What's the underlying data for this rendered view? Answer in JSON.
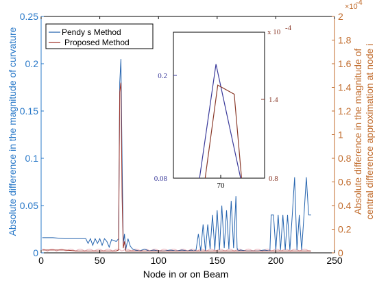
{
  "chart_data": {
    "type": "line",
    "title": "",
    "xlabel": "Node in or on Beam",
    "ylabel_left": "Absolute difference in the magnitude of curvature",
    "ylabel_right": [
      "Absolute difference in the magnitude of",
      "central difference approximation at node i"
    ],
    "xlim": [
      0,
      250
    ],
    "ylim_left": [
      0,
      0.25
    ],
    "ylim_right": [
      0,
      2
    ],
    "right_multiplier": "×10",
    "right_exponent": "-4",
    "x_ticks": [
      "0",
      "50",
      "100",
      "150",
      "200",
      "250"
    ],
    "y_ticks_left": [
      "0",
      "0.05",
      "0.1",
      "0.15",
      "0.2",
      "0.25"
    ],
    "y_ticks_right": [
      "0",
      "0.2",
      "0.4",
      "0.6",
      "0.8",
      "1",
      "1.2",
      "1.4",
      "1.6",
      "1.8",
      "2"
    ],
    "legend_position": "top-left",
    "colors": {
      "blue": "#2463ae",
      "red": "#a0342a",
      "left_axis": "#2878c8",
      "right_axis": "#c06a2a",
      "inset_left": "#3a3a9a",
      "inset_right": "#8a3a2a",
      "noise": "#e7a8b2"
    },
    "series": [
      {
        "name": "Pendy s Method",
        "axis": "left",
        "color": "#2463ae",
        "x": [
          1,
          10,
          20,
          30,
          38,
          40,
          42,
          44,
          46,
          48,
          50,
          52,
          54,
          56,
          58,
          60,
          62,
          64,
          66,
          67,
          68,
          69,
          70,
          71,
          72,
          74,
          76,
          78,
          80,
          84,
          88,
          92,
          96,
          100,
          105,
          110,
          115,
          120,
          125,
          128,
          130,
          132,
          134,
          136,
          138,
          140,
          142,
          144,
          146,
          148,
          150,
          152,
          154,
          156,
          158,
          160,
          162,
          164,
          166,
          167,
          168,
          170,
          175,
          180,
          185,
          190,
          195,
          196,
          198,
          200,
          202,
          204,
          206,
          208,
          210,
          212,
          214,
          216,
          218,
          220,
          222,
          224,
          226,
          228,
          230
        ],
        "y": [
          0.016,
          0.016,
          0.015,
          0.015,
          0.015,
          0.01,
          0.015,
          0.008,
          0.015,
          0.01,
          0.015,
          0.008,
          0.015,
          0.012,
          0.006,
          0.014,
          0.013,
          0.012,
          0.015,
          0.18,
          0.205,
          0.1,
          0.01,
          0.02,
          0.003,
          0.015,
          0.007,
          0.004,
          0.003,
          0.002,
          0.004,
          0.002,
          0.003,
          0.002,
          0.002,
          0.003,
          0.002,
          0.003,
          0.002,
          0.003,
          0.002,
          0.003,
          0.02,
          0.002,
          0.03,
          0.002,
          0.03,
          0.004,
          0.04,
          0.003,
          0.045,
          0.003,
          0.05,
          0.005,
          0.045,
          0.004,
          0.055,
          0.005,
          0.06,
          0.005,
          0.002,
          0.003,
          0.002,
          0.002,
          0.002,
          0.003,
          0.002,
          0.04,
          0.04,
          0.003,
          0.04,
          0.003,
          0.04,
          0.003,
          0.04,
          0.003,
          0.04,
          0.08,
          0.003,
          0.04,
          0.003,
          0.04,
          0.08,
          0.04,
          0.04
        ]
      },
      {
        "name": "Proposed Method",
        "axis": "left",
        "color": "#a0342a",
        "x": [
          1,
          10,
          20,
          30,
          40,
          50,
          60,
          64,
          66,
          67,
          68,
          69,
          70,
          71,
          72,
          74,
          78,
          90,
          110,
          130,
          150,
          170,
          190,
          210,
          230
        ],
        "y": [
          0.003,
          0.003,
          0.003,
          0.002,
          0.002,
          0.002,
          0.002,
          0.002,
          0.003,
          0.17,
          0.18,
          0.06,
          0.005,
          0.012,
          0.002,
          0.002,
          0.002,
          0.002,
          0.002,
          0.002,
          0.002,
          0.002,
          0.002,
          0.002,
          0.002
        ]
      }
    ],
    "inset": {
      "x_ticks": [
        "70"
      ],
      "y_ticks_left": [
        "0.08",
        "0.2"
      ],
      "y_ticks_right": [
        "0.8",
        "1.4"
      ],
      "right_multiplier": "x 10",
      "right_exponent": "-4",
      "xlim": [
        63,
        78
      ],
      "ylim": [
        0.08,
        0.24
      ],
      "series": [
        {
          "name": "Pendy s Method",
          "color": "#3a3a9a",
          "x": [
            66,
            70,
            76
          ],
          "y": [
            0.02,
            0.205,
            0.02
          ]
        },
        {
          "name": "Proposed Method",
          "color": "#8a3a2a",
          "x": [
            67,
            70.3,
            73,
            75
          ],
          "y": [
            0.02,
            0.182,
            0.172,
            0.02
          ]
        }
      ]
    }
  }
}
